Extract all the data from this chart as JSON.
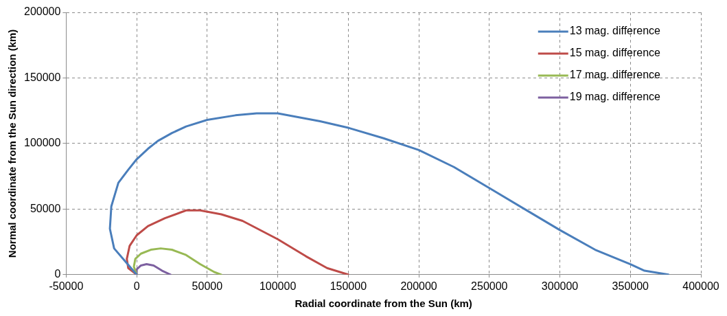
{
  "chart_data": {
    "type": "line",
    "xlabel": "Radial coordinate from the Sun (km)",
    "ylabel": "Normal coordinate from the Sun direction (km)",
    "xlim": [
      -50000,
      400000
    ],
    "xticks": [
      -50000,
      0,
      50000,
      100000,
      150000,
      200000,
      250000,
      300000,
      350000,
      400000
    ],
    "ylim": [
      0,
      200000
    ],
    "yticks": [
      0,
      50000,
      100000,
      150000,
      200000
    ],
    "grid": true,
    "legend": "top right",
    "marker": "none",
    "line_style": "solid",
    "series": [
      {
        "name": "13 mag. difference",
        "color": "#4a7ebb",
        "x": [
          0,
          -8000,
          -16000,
          -19000,
          -18000,
          -13000,
          -6000,
          0,
          8000,
          15000,
          25000,
          35000,
          50000,
          70000,
          85000,
          100000,
          115000,
          130000,
          150000,
          175000,
          200000,
          225000,
          250000,
          275000,
          300000,
          325000,
          350000,
          360000,
          377000
        ],
        "values": [
          0,
          10000,
          20000,
          35000,
          52000,
          70000,
          80000,
          88000,
          96000,
          102000,
          108000,
          113000,
          118000,
          121500,
          123000,
          123000,
          120000,
          117000,
          112000,
          104000,
          95000,
          82000,
          66000,
          50000,
          34000,
          19000,
          8000,
          3000,
          0
        ]
      },
      {
        "name": "15 mag. difference",
        "color": "#be4b48",
        "x": [
          0,
          -6000,
          -7000,
          -5000,
          0,
          8000,
          20000,
          35000,
          45000,
          60000,
          75000,
          100000,
          120000,
          135000,
          150000
        ],
        "values": [
          0,
          5000,
          12000,
          22000,
          30000,
          37000,
          43000,
          49000,
          49000,
          46000,
          41000,
          27000,
          14000,
          5000,
          0
        ]
      },
      {
        "name": "17 mag. difference",
        "color": "#98b954",
        "x": [
          0,
          -2000,
          -1000,
          3000,
          10000,
          17000,
          25000,
          35000,
          45000,
          55000,
          60000
        ],
        "values": [
          0,
          6000,
          12000,
          16000,
          19000,
          20000,
          19000,
          15000,
          8000,
          2000,
          0
        ]
      },
      {
        "name": "19 mag. difference",
        "color": "#7d60a0",
        "x": [
          0,
          0,
          3000,
          7000,
          12000,
          18000,
          24000
        ],
        "values": [
          0,
          4000,
          7000,
          8000,
          7000,
          3000,
          0
        ]
      }
    ]
  }
}
